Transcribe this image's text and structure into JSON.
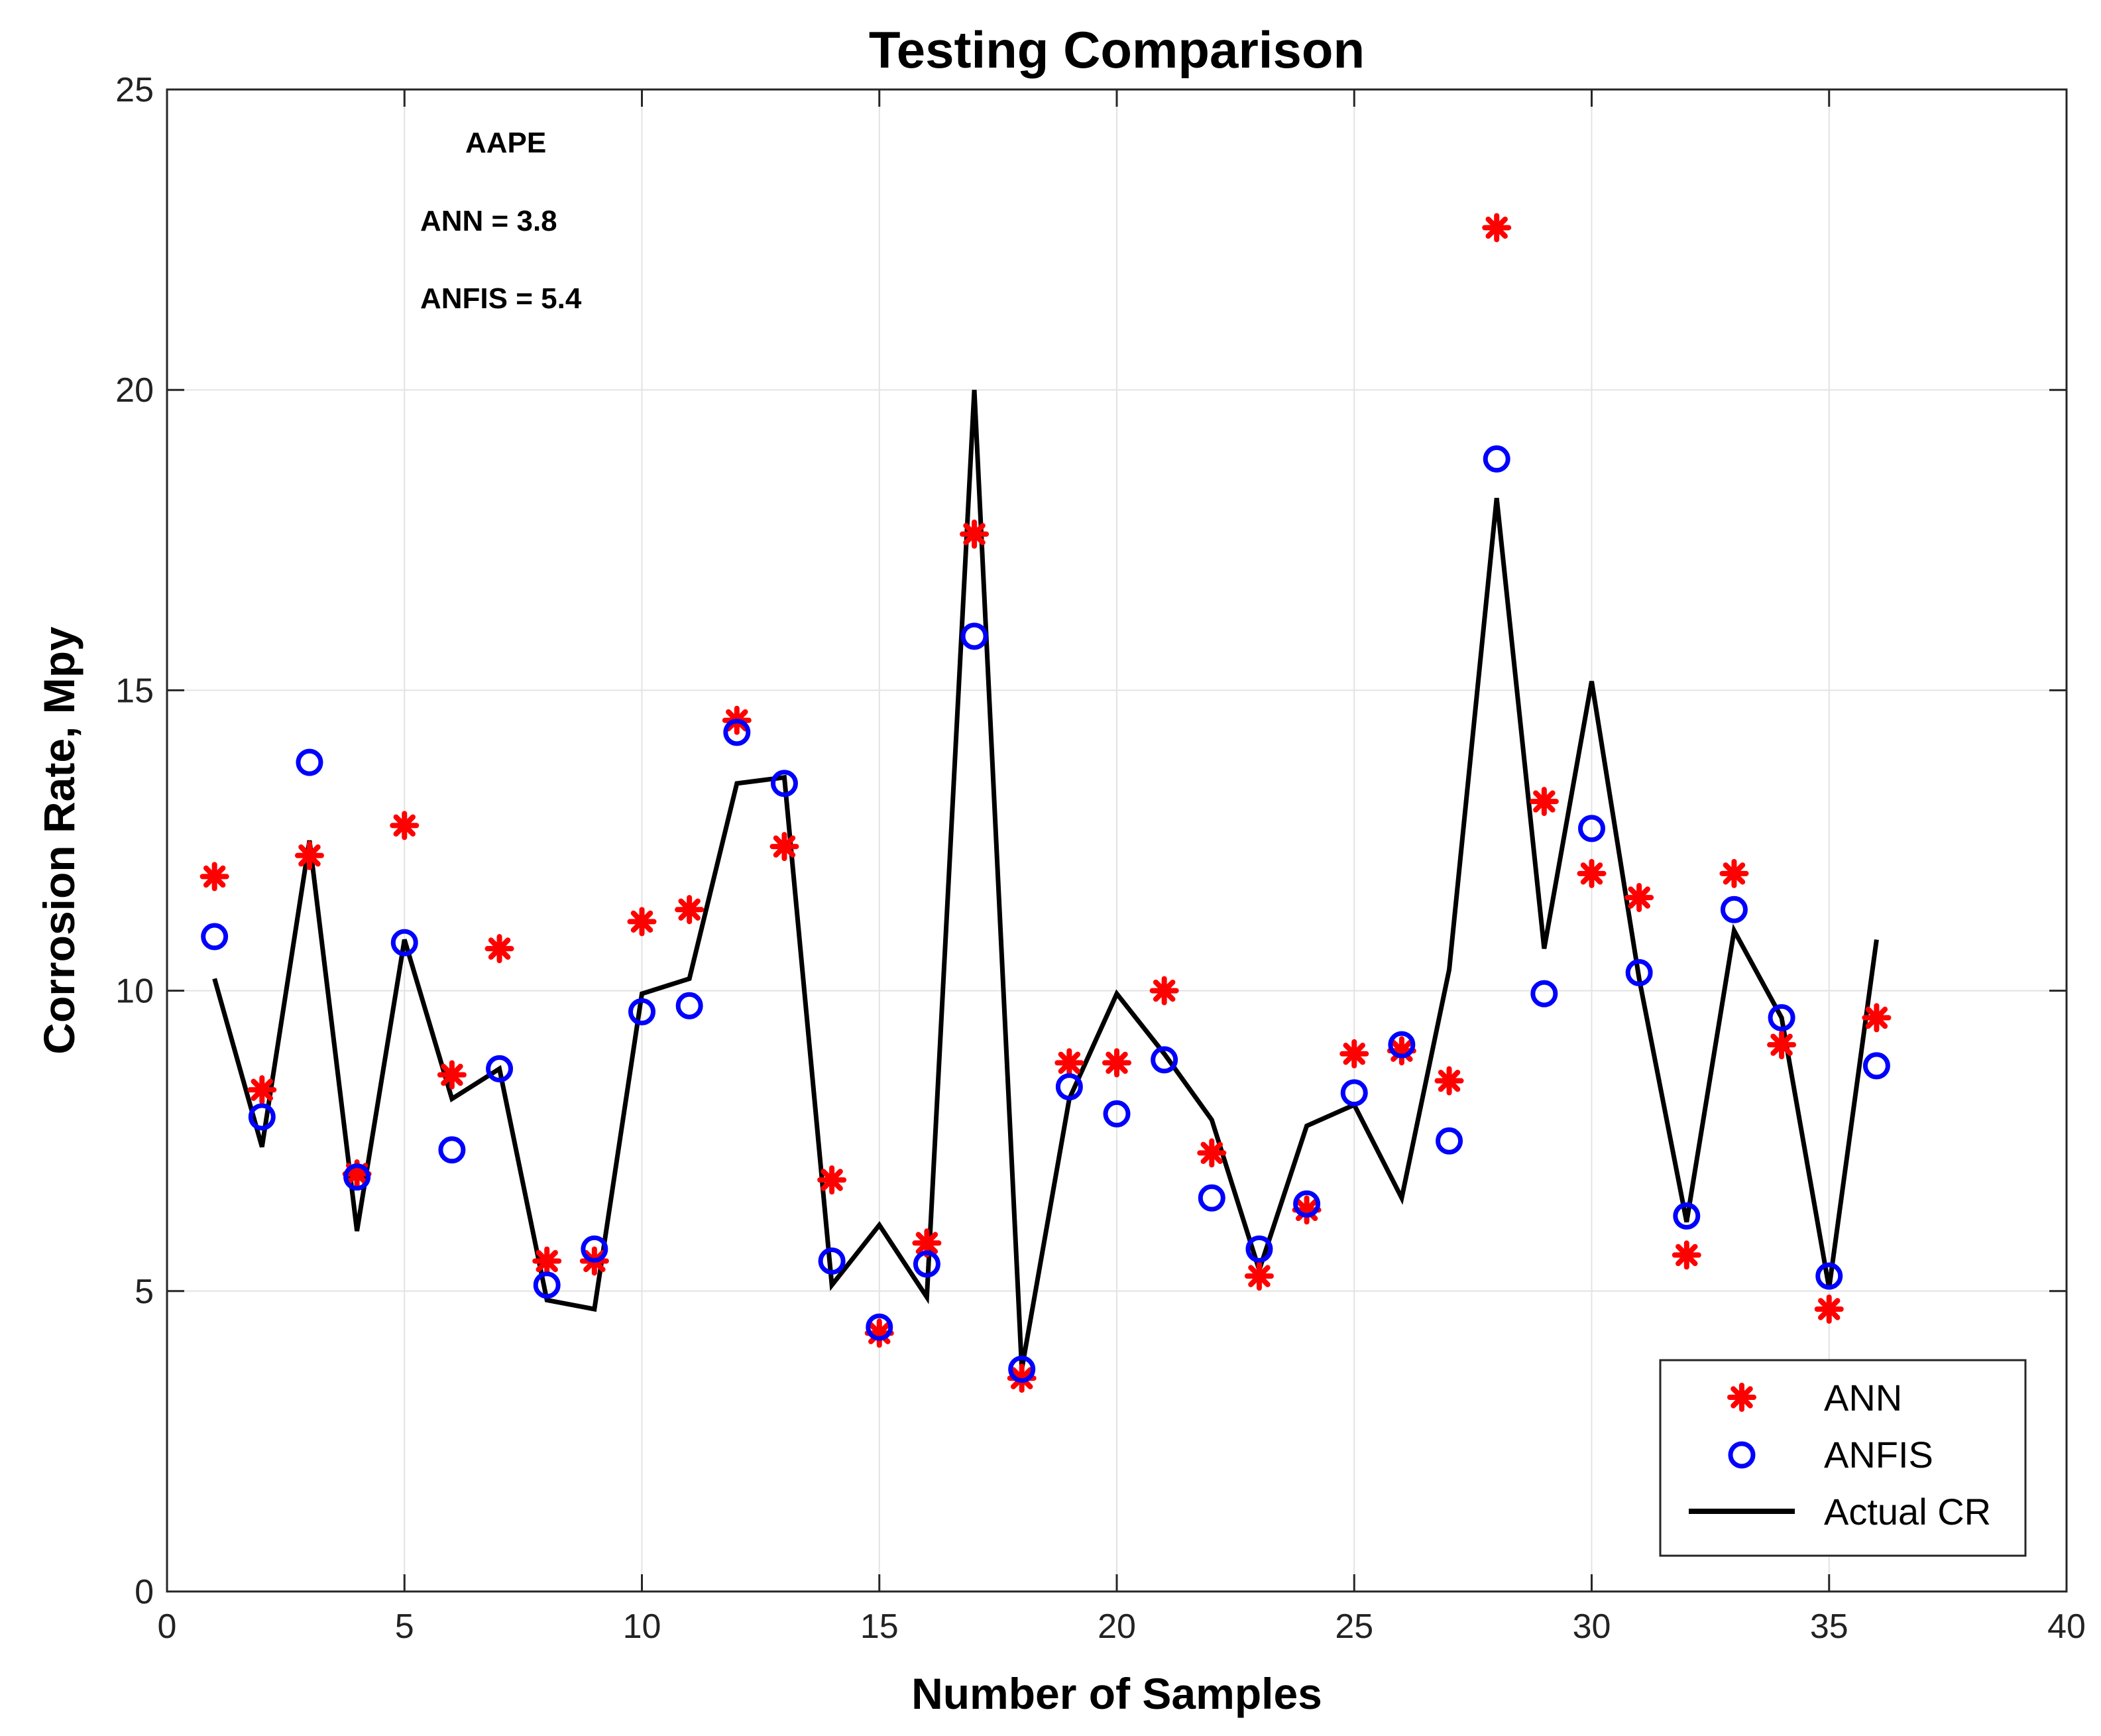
{
  "chart_data": {
    "type": "scatter",
    "title": "Testing Comparison",
    "xlabel": "Number of Samples",
    "ylabel": "Corrosion Rate, Mpy",
    "xlim": [
      0,
      40
    ],
    "ylim": [
      0,
      25
    ],
    "xticks": [
      0,
      5,
      10,
      15,
      20,
      25,
      30,
      35,
      40
    ],
    "yticks": [
      0,
      5,
      10,
      15,
      20,
      25
    ],
    "grid": true,
    "legend_position": "bottom-right",
    "annotation": {
      "heading": "AAPE",
      "lines": [
        "ANN = 3.8",
        "ANFIS = 5.4"
      ]
    },
    "x": [
      1,
      2,
      3,
      4,
      5,
      6,
      7,
      8,
      9,
      10,
      11,
      12,
      13,
      14,
      15,
      16,
      17,
      18,
      19,
      20,
      21,
      22,
      23,
      24,
      25,
      26,
      27,
      28,
      29,
      30,
      31,
      32,
      33,
      34,
      35,
      36
    ],
    "series": [
      {
        "name": "ANN",
        "style": "asterisk",
        "color": "#ff0000",
        "values": [
          11.9,
          8.35,
          12.25,
          6.95,
          12.75,
          8.6,
          10.7,
          5.5,
          5.5,
          11.15,
          11.35,
          14.5,
          12.4,
          6.85,
          4.3,
          5.8,
          17.6,
          3.55,
          8.8,
          8.8,
          10.0,
          7.3,
          5.25,
          6.35,
          8.95,
          9.0,
          8.5,
          22.7,
          13.15,
          11.95,
          11.55,
          5.6,
          11.95,
          9.1,
          4.7,
          9.55
        ]
      },
      {
        "name": "ANFIS",
        "style": "circle",
        "color": "#0000ff",
        "values": [
          10.9,
          7.9,
          13.8,
          6.9,
          10.8,
          7.35,
          8.7,
          5.1,
          5.7,
          9.65,
          9.75,
          14.3,
          13.45,
          5.5,
          4.4,
          5.45,
          15.9,
          3.7,
          8.4,
          7.95,
          8.85,
          6.55,
          5.7,
          6.45,
          8.3,
          9.1,
          7.5,
          18.85,
          9.95,
          12.7,
          10.3,
          6.25,
          11.35,
          9.55,
          5.25,
          8.75
        ]
      },
      {
        "name": "Actual CR",
        "style": "line",
        "color": "#000000",
        "values": [
          10.2,
          7.4,
          12.5,
          6.0,
          10.85,
          8.2,
          8.7,
          4.85,
          4.7,
          9.95,
          10.2,
          13.45,
          13.55,
          5.1,
          6.1,
          4.9,
          20.0,
          3.7,
          8.2,
          9.95,
          8.95,
          7.85,
          5.35,
          7.75,
          8.1,
          6.55,
          10.35,
          18.2,
          10.7,
          15.15,
          10.2,
          6.15,
          11.0,
          9.55,
          5.05,
          10.85
        ]
      }
    ]
  }
}
